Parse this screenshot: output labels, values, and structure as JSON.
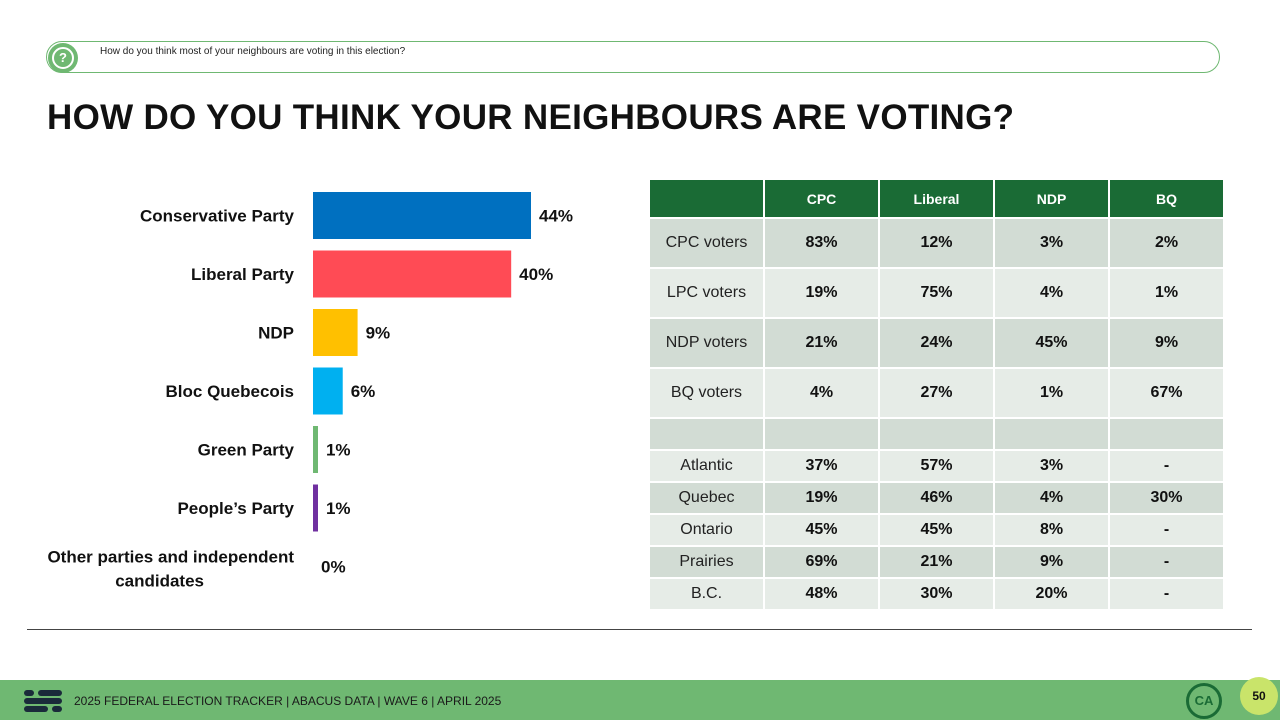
{
  "question": {
    "icon": "question-icon",
    "text": "How do you think most of your neighbours are voting in this election?"
  },
  "title": "HOW DO YOU THINK YOUR NEIGHBOURS ARE VOTING?",
  "chart_data": [
    {
      "type": "bar",
      "orientation": "horizontal",
      "categories": [
        "Conservative Party",
        "Liberal Party",
        "NDP",
        "Bloc Quebecois",
        "Green Party",
        "People’s Party",
        "Other parties and independent candidates"
      ],
      "values": [
        44,
        40,
        9,
        6,
        1,
        1,
        0
      ],
      "value_labels": [
        "44%",
        "40%",
        "9%",
        "6%",
        "1%",
        "1%",
        "0%"
      ],
      "colors": [
        "#0070c0",
        "#ff4b55",
        "#ffc000",
        "#00b0f0",
        "#6fb872",
        "#7030a0",
        "#999999"
      ],
      "xlim": [
        0,
        44
      ]
    },
    {
      "type": "table",
      "columns": [
        "",
        "CPC",
        "Liberal",
        "NDP",
        "BQ"
      ],
      "rows": [
        {
          "label": "CPC voters",
          "values": [
            "83%",
            "12%",
            "3%",
            "2%"
          ],
          "size": "big",
          "shade": "dark"
        },
        {
          "label": "LPC voters",
          "values": [
            "19%",
            "75%",
            "4%",
            "1%"
          ],
          "size": "big",
          "shade": "light"
        },
        {
          "label": "NDP voters",
          "values": [
            "21%",
            "24%",
            "45%",
            "9%"
          ],
          "size": "big",
          "shade": "dark"
        },
        {
          "label": "BQ voters",
          "values": [
            "4%",
            "27%",
            "1%",
            "67%"
          ],
          "size": "big",
          "shade": "light"
        },
        {
          "label": "",
          "values": [
            "",
            "",
            "",
            ""
          ],
          "size": "sm",
          "shade": "dark"
        },
        {
          "label": "Atlantic",
          "values": [
            "37%",
            "57%",
            "3%",
            "-"
          ],
          "size": "sm",
          "shade": "light"
        },
        {
          "label": "Quebec",
          "values": [
            "19%",
            "46%",
            "4%",
            "30%"
          ],
          "size": "sm",
          "shade": "dark"
        },
        {
          "label": "Ontario",
          "values": [
            "45%",
            "45%",
            "8%",
            "-"
          ],
          "size": "sm",
          "shade": "light"
        },
        {
          "label": "Prairies",
          "values": [
            "69%",
            "21%",
            "9%",
            "-"
          ],
          "size": "sm",
          "shade": "dark"
        },
        {
          "label": "B.C.",
          "values": [
            "48%",
            "30%",
            "20%",
            "-"
          ],
          "size": "sm",
          "shade": "light"
        }
      ]
    }
  ],
  "footer": {
    "logo_icon": "abacus-logo-icon",
    "text": "2025 FEDERAL ELECTION TRACKER  |  ABACUS DATA  |  WAVE 6  |  APRIL 2025",
    "circle_logo": "CA",
    "page_number": "50"
  },
  "colors": {
    "accent_green": "#6fb872",
    "header_green": "#1a6b35"
  }
}
